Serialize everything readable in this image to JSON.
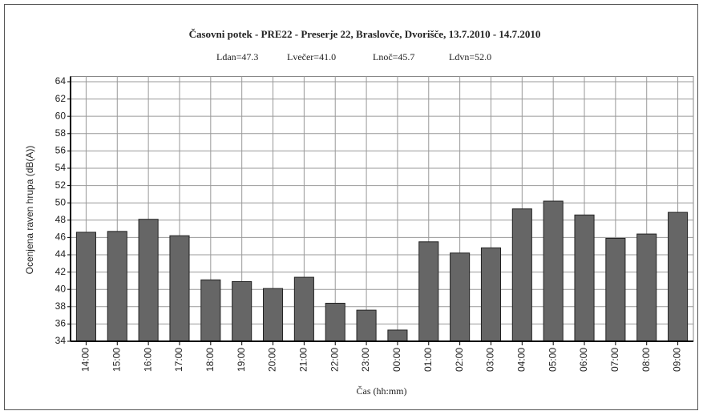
{
  "chart_data": {
    "type": "bar",
    "title": "Časovni potek - PRE22 - Preserje 22, Braslovče, Dvorišče, 13.7.2010 - 14.7.2010",
    "subtitle": [
      "Ldan=47.3",
      "Lvečer=41.0",
      "Lnoč=45.7",
      "Ldvn=52.0"
    ],
    "y_label": "Ocenjena raven hrupa (dB(A))",
    "x_label": "Čas (hh:mm)",
    "categories": [
      "14:00",
      "15:00",
      "16:00",
      "17:00",
      "18:00",
      "19:00",
      "20:00",
      "21:00",
      "22:00",
      "23:00",
      "00:00",
      "01:00",
      "02:00",
      "03:00",
      "04:00",
      "05:00",
      "06:00",
      "07:00",
      "08:00",
      "09:00"
    ],
    "values": [
      46.6,
      46.7,
      48.1,
      46.2,
      41.1,
      40.9,
      40.1,
      41.4,
      38.4,
      37.6,
      35.3,
      45.5,
      44.2,
      44.8,
      49.3,
      50.2,
      48.6,
      45.9,
      46.4,
      48.9
    ],
    "color": "#666666",
    "ylim": [
      34,
      64.6
    ],
    "yticks": [
      34,
      36,
      38,
      40,
      42,
      44,
      46,
      48,
      50,
      52,
      54,
      56,
      58,
      60,
      62,
      64
    ],
    "grid": true
  }
}
